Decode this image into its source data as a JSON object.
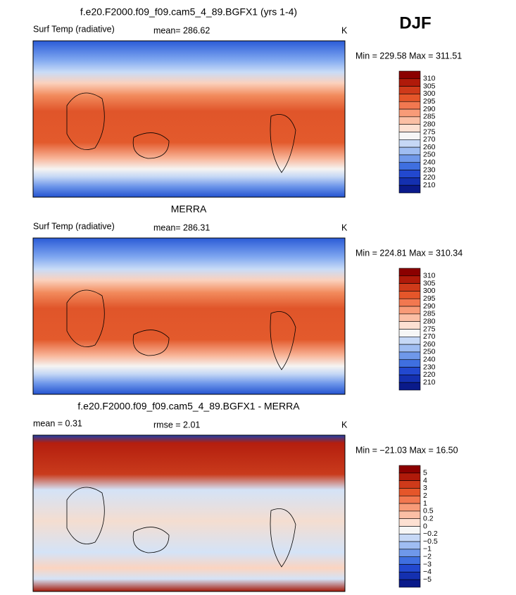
{
  "header": {
    "season": "DJF"
  },
  "panels": [
    {
      "title": "f.e20.F2000.f09_f09.cam5_4_89.BGFX1 (yrs 1-4)",
      "left_label": "Surf Temp (radiative)",
      "center_label": "mean= 286.62",
      "units": "K",
      "min_max": "Min = 229.58 Max = 311.51",
      "colorbar_labels": [
        "310",
        "305",
        "300",
        "295",
        "290",
        "285",
        "280",
        "275",
        "270",
        "260",
        "250",
        "240",
        "230",
        "220",
        "210"
      ]
    },
    {
      "title": "MERRA",
      "left_label": "Surf Temp (radiative)",
      "center_label": "mean= 286.31",
      "units": "K",
      "min_max": "Min = 224.81 Max = 310.34",
      "colorbar_labels": [
        "310",
        "305",
        "300",
        "295",
        "290",
        "285",
        "280",
        "275",
        "270",
        "260",
        "250",
        "240",
        "230",
        "220",
        "210"
      ]
    },
    {
      "title": "f.e20.F2000.f09_f09.cam5_4_89.BGFX1 - MERRA",
      "left_label": "mean =    0.31",
      "center_label": "rmse =    2.01",
      "units": "K",
      "min_max": "Min = −21.03 Max =  16.50",
      "colorbar_labels": [
        "5",
        "4",
        "3",
        "2",
        "1",
        "0.5",
        "0.2",
        "0",
        "−0.2",
        "−0.5",
        "−1",
        "−2",
        "−3",
        "−4",
        "−5"
      ]
    }
  ]
}
